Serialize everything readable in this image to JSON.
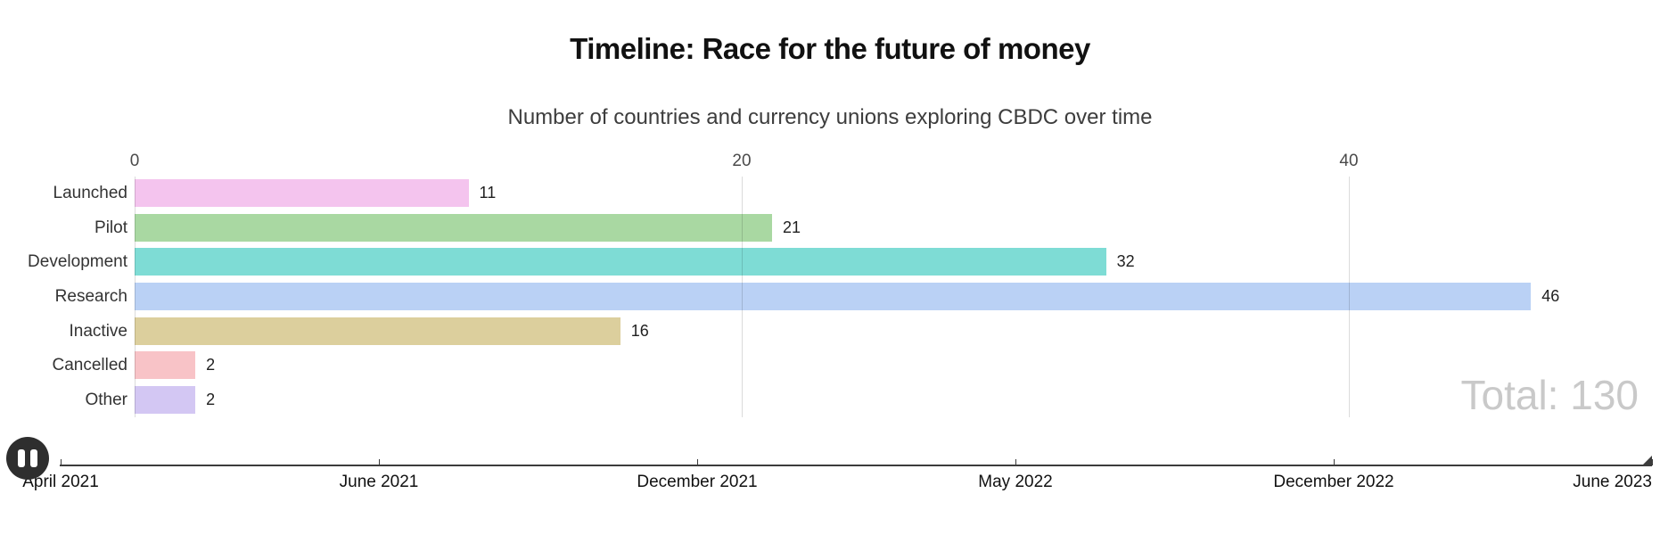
{
  "chart_data": {
    "type": "bar",
    "orientation": "horizontal",
    "title": "Timeline: Race for the future of money",
    "subtitle": "Number of countries and currency unions exploring CBDC over time",
    "categories": [
      "Launched",
      "Pilot",
      "Development",
      "Research",
      "Inactive",
      "Cancelled",
      "Other"
    ],
    "values": [
      11,
      21,
      32,
      46,
      16,
      2,
      2
    ],
    "value_labels": [
      "11",
      "21",
      "32",
      "46",
      "16",
      "2",
      "2"
    ],
    "bar_colors": [
      "#f4c4ee",
      "#a9d8a2",
      "#7edcd5",
      "#bad1f5",
      "#dccf9d",
      "#f8c3c7",
      "#d3c7f3"
    ],
    "x_ticks": [
      0,
      20,
      40
    ],
    "xlim": [
      0,
      50
    ],
    "grid": true,
    "legend": "none",
    "total_label": "Total: 130"
  },
  "timeline": {
    "dates": [
      "April 2021",
      "June 2021",
      "December 2021",
      "May 2022",
      "December 2022",
      "June 2023"
    ],
    "current_position": "June 2023",
    "play_state": "playing",
    "pause_icon": "pause-icon"
  },
  "colors": {
    "title": "#111111",
    "subtitle": "#3d3d3d",
    "tick_label": "#4a4a4a",
    "category_label": "#333333",
    "value_label": "#1f1f1f",
    "total_label": "#c9c9c9",
    "gridline": "rgba(0,0,0,0.14)",
    "timeline_line": "#3c3c3c",
    "pause_background": "#2e2e2e"
  }
}
